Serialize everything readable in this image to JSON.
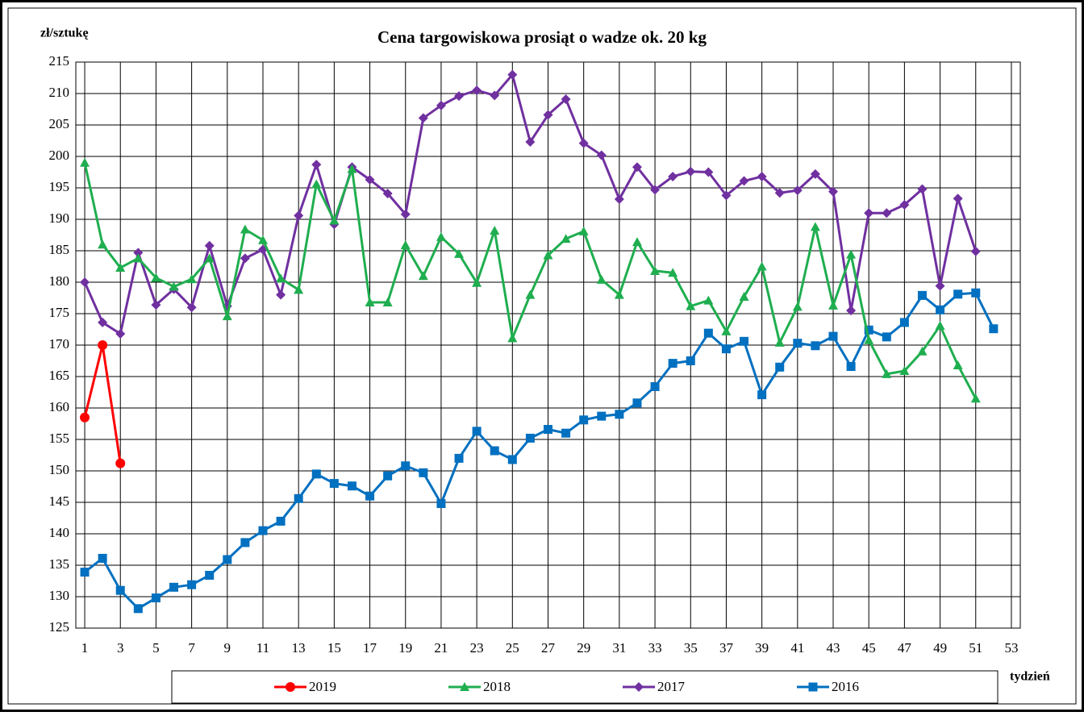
{
  "chart_data": {
    "type": "line",
    "title": "Cena targowiskowa prosiąt o wadze ok. 20 kg",
    "y_label": "zł/sztukę",
    "x_label": "tydzień",
    "x": [
      1,
      2,
      3,
      4,
      5,
      6,
      7,
      8,
      9,
      10,
      11,
      12,
      13,
      14,
      15,
      16,
      17,
      18,
      19,
      20,
      21,
      22,
      23,
      24,
      25,
      26,
      27,
      28,
      29,
      30,
      31,
      32,
      33,
      34,
      35,
      36,
      37,
      38,
      39,
      40,
      41,
      42,
      43,
      44,
      45,
      46,
      47,
      48,
      49,
      50,
      51,
      52
    ],
    "xlim": [
      0.5,
      53.5
    ],
    "xticks": [
      1,
      3,
      5,
      7,
      9,
      11,
      13,
      15,
      17,
      19,
      21,
      23,
      25,
      27,
      29,
      31,
      33,
      35,
      37,
      39,
      41,
      43,
      45,
      47,
      49,
      51,
      53
    ],
    "ylim": [
      125,
      215
    ],
    "yticks": [
      125,
      130,
      135,
      140,
      145,
      150,
      155,
      160,
      165,
      170,
      175,
      180,
      185,
      190,
      195,
      200,
      205,
      210,
      215
    ],
    "grid": true,
    "series": [
      {
        "name": "2019",
        "color": "#ff0000",
        "marker": "circle",
        "values": [
          158.5,
          170,
          151.2,
          null,
          null,
          null,
          null,
          null,
          null,
          null,
          null,
          null,
          null,
          null,
          null,
          null,
          null,
          null,
          null,
          null,
          null,
          null,
          null,
          null,
          null,
          null,
          null,
          null,
          null,
          null,
          null,
          null,
          null,
          null,
          null,
          null,
          null,
          null,
          null,
          null,
          null,
          null,
          null,
          null,
          null,
          null,
          null,
          null,
          null,
          null,
          null,
          null
        ]
      },
      {
        "name": "2018",
        "color": "#1fae4f",
        "marker": "triangle",
        "values": [
          199,
          186,
          182.3,
          183.8,
          180.7,
          179.3,
          180.5,
          183.8,
          174.6,
          188.4,
          186.7,
          180.6,
          178.8,
          195.6,
          189.8,
          198,
          176.8,
          176.8,
          185.9,
          181,
          187.2,
          184.5,
          179.9,
          188.2,
          171.1,
          178,
          184.3,
          186.9,
          188.1,
          180.4,
          178,
          186.4,
          181.8,
          181.5,
          176.2,
          177.1,
          172.2,
          177.7,
          182.5,
          170.4,
          176.1,
          188.8,
          176.3,
          184.4,
          170.8,
          165.4,
          165.9,
          169,
          173.1,
          166.8,
          161.5,
          null
        ]
      },
      {
        "name": "2017",
        "color": "#7030a0",
        "marker": "diamond",
        "values": [
          180,
          173.6,
          171.8,
          184.7,
          176.4,
          178.9,
          176,
          185.8,
          176.2,
          183.8,
          185.2,
          178,
          190.6,
          198.7,
          189.2,
          198.3,
          196.3,
          194.1,
          190.8,
          206.1,
          208.1,
          209.6,
          210.5,
          209.7,
          213,
          202.3,
          206.6,
          209.1,
          202.1,
          200.2,
          193.2,
          198.3,
          194.7,
          196.8,
          197.6,
          197.5,
          193.8,
          196.1,
          196.8,
          194.2,
          194.6,
          197.2,
          194.4,
          175.5,
          191,
          191,
          192.3,
          194.8,
          179.4,
          193.3,
          184.9,
          null
        ]
      },
      {
        "name": "2016",
        "color": "#0070c0",
        "marker": "square",
        "values": [
          133.9,
          136.1,
          131,
          128.1,
          129.8,
          131.5,
          131.9,
          133.4,
          135.9,
          138.6,
          140.5,
          142,
          145.6,
          149.5,
          148,
          147.6,
          146,
          149.2,
          150.8,
          149.7,
          144.8,
          152,
          156.3,
          153.2,
          151.8,
          155.2,
          156.6,
          156,
          158.1,
          158.7,
          159,
          160.8,
          163.4,
          167.1,
          167.5,
          171.9,
          169.4,
          170.6,
          162.1,
          166.5,
          170.3,
          169.9,
          171.4,
          166.6,
          172.4,
          171.3,
          173.6,
          177.9,
          175.6,
          178.1,
          178.3,
          172.6
        ]
      }
    ]
  }
}
